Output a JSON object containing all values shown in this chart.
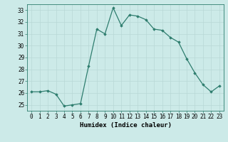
{
  "x": [
    0,
    1,
    2,
    3,
    4,
    5,
    6,
    7,
    8,
    9,
    10,
    11,
    12,
    13,
    14,
    15,
    16,
    17,
    18,
    19,
    20,
    21,
    22,
    23
  ],
  "y": [
    26.1,
    26.1,
    26.2,
    25.9,
    24.9,
    25.0,
    25.1,
    28.3,
    31.4,
    31.0,
    33.2,
    31.7,
    32.6,
    32.5,
    32.2,
    31.4,
    31.3,
    30.7,
    30.3,
    28.9,
    27.7,
    26.7,
    26.1,
    26.6
  ],
  "line_color": "#2e7d6e",
  "marker": "D",
  "marker_size": 1.8,
  "bg_color": "#cceae8",
  "grid_color": "#b8d8d6",
  "xlabel": "Humidex (Indice chaleur)",
  "xlim": [
    -0.5,
    23.5
  ],
  "ylim": [
    24.5,
    33.5
  ],
  "xticks": [
    0,
    1,
    2,
    3,
    4,
    5,
    6,
    7,
    8,
    9,
    10,
    11,
    12,
    13,
    14,
    15,
    16,
    17,
    18,
    19,
    20,
    21,
    22,
    23
  ],
  "yticks": [
    25,
    26,
    27,
    28,
    29,
    30,
    31,
    32,
    33
  ],
  "xlabel_fontsize": 6.5,
  "tick_fontsize": 5.5,
  "line_width": 0.9
}
